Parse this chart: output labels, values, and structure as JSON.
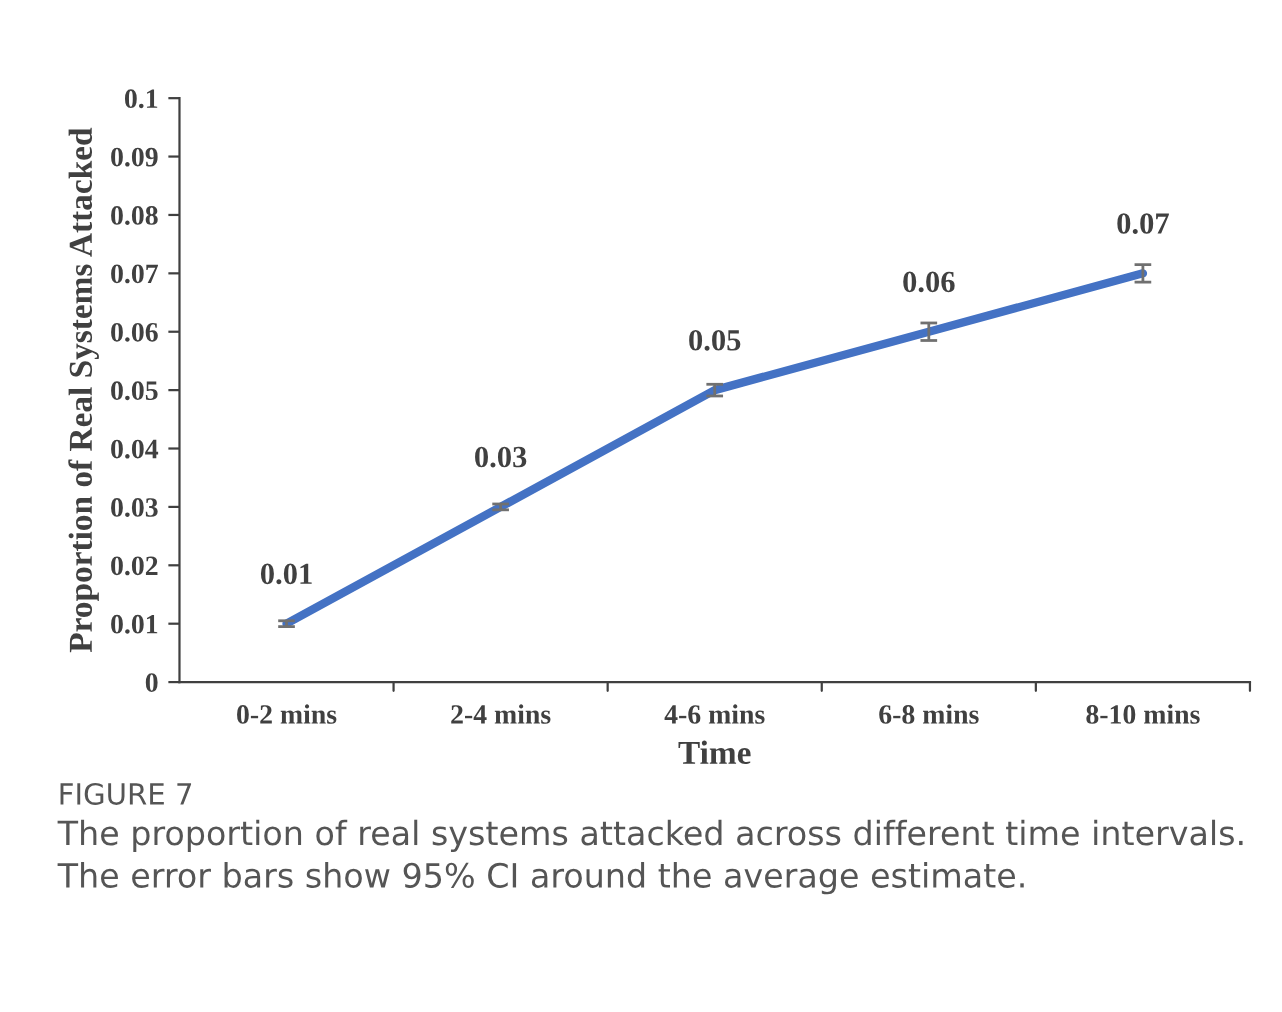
{
  "chart_data": {
    "type": "line",
    "xlabel": "Time",
    "ylabel": "Proportion of Real Systems Attacked",
    "categories": [
      "0-2 mins",
      "2-4 mins",
      "4-6 mins",
      "6-8 mins",
      "8-10 mins"
    ],
    "series": [
      {
        "color": "#4472c4",
        "values": [
          0.01,
          0.03,
          0.05,
          0.06,
          0.07
        ],
        "errors": [
          0.0005,
          0.0005,
          0.001,
          0.0015,
          0.0015
        ]
      }
    ],
    "ylim": [
      0,
      0.1
    ],
    "yticks": [
      0,
      0.01,
      0.02,
      0.03,
      0.04,
      0.05,
      0.06,
      0.07,
      0.08,
      0.09,
      0.1
    ],
    "grid": false,
    "legend": false,
    "marker": "none",
    "line_style": "solid",
    "data_labels": true,
    "annotations": [
      "FIGURE 7",
      "The proportion of real systems attacked across different time intervals. The error bars show 95% CI around the average estimate."
    ]
  }
}
